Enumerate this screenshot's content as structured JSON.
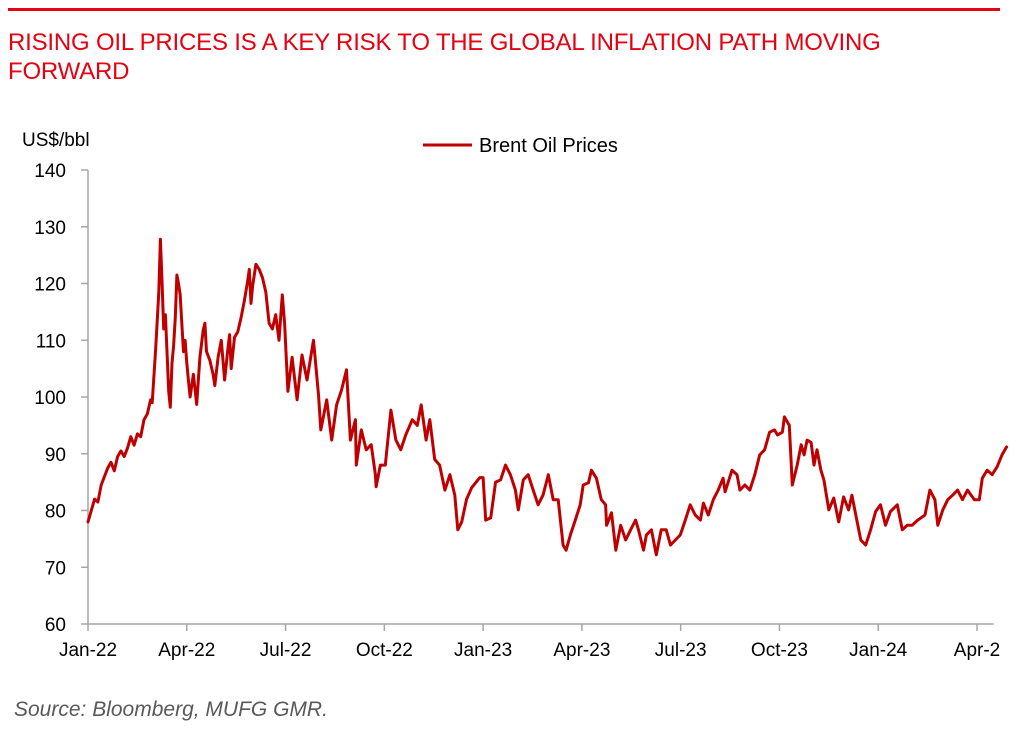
{
  "header": {
    "title": "RISING OIL PRICES IS A KEY RISK TO THE GLOBAL INFLATION PATH MOVING FORWARD"
  },
  "footer": {
    "source": "Source: Bloomberg, MUFG GMR."
  },
  "colors": {
    "accent": "#e60012",
    "series": "#c00000",
    "axis": "#a6a6a6"
  },
  "chart_data": {
    "type": "line",
    "title": "",
    "ylabel": "US$/bbl",
    "xlabel": "",
    "x_unit": "months since 2022-01-01",
    "ylim": [
      60,
      140
    ],
    "yticks": [
      60,
      70,
      80,
      90,
      100,
      110,
      120,
      130,
      140
    ],
    "xlim": [
      0,
      27.6
    ],
    "xticks": [
      {
        "label": "Jan-22",
        "m": 0
      },
      {
        "label": "Apr-22",
        "m": 3
      },
      {
        "label": "Jul-22",
        "m": 6
      },
      {
        "label": "Oct-22",
        "m": 9
      },
      {
        "label": "Jan-23",
        "m": 12
      },
      {
        "label": "Apr-23",
        "m": 15
      },
      {
        "label": "Jul-23",
        "m": 18
      },
      {
        "label": "Oct-23",
        "m": 21
      },
      {
        "label": "Jan-24",
        "m": 24
      },
      {
        "label": "Apr-2",
        "m": 27
      }
    ],
    "grid": false,
    "legend": {
      "position": "top-center",
      "entries": [
        "Brent Oil Prices"
      ]
    },
    "series": [
      {
        "name": "Brent Oil Prices",
        "points": [
          [
            0.0,
            78
          ],
          [
            0.1,
            80
          ],
          [
            0.2,
            82
          ],
          [
            0.3,
            81.5
          ],
          [
            0.4,
            84.5
          ],
          [
            0.5,
            86
          ],
          [
            0.6,
            87.5
          ],
          [
            0.7,
            88.5
          ],
          [
            0.8,
            87
          ],
          [
            0.9,
            89.5
          ],
          [
            1.0,
            90.5
          ],
          [
            1.1,
            89.5
          ],
          [
            1.2,
            91
          ],
          [
            1.3,
            93
          ],
          [
            1.4,
            91.5
          ],
          [
            1.5,
            93.5
          ],
          [
            1.6,
            93
          ],
          [
            1.7,
            96
          ],
          [
            1.8,
            97
          ],
          [
            1.9,
            99.5
          ],
          [
            1.95,
            99
          ],
          [
            2.05,
            108
          ],
          [
            2.1,
            113
          ],
          [
            2.15,
            118.5
          ],
          [
            2.2,
            127.8
          ],
          [
            2.25,
            120
          ],
          [
            2.3,
            112
          ],
          [
            2.35,
            114.5
          ],
          [
            2.4,
            108
          ],
          [
            2.45,
            101
          ],
          [
            2.5,
            98.2
          ],
          [
            2.55,
            106
          ],
          [
            2.6,
            109
          ],
          [
            2.65,
            114
          ],
          [
            2.7,
            121.5
          ],
          [
            2.75,
            120
          ],
          [
            2.8,
            118
          ],
          [
            2.85,
            113
          ],
          [
            2.9,
            108
          ],
          [
            2.95,
            110
          ],
          [
            3.0,
            106
          ],
          [
            3.05,
            103
          ],
          [
            3.1,
            100
          ],
          [
            3.2,
            104
          ],
          [
            3.3,
            98.7
          ],
          [
            3.4,
            107
          ],
          [
            3.5,
            111.8
          ],
          [
            3.55,
            113
          ],
          [
            3.6,
            108
          ],
          [
            3.7,
            106.5
          ],
          [
            3.8,
            104
          ],
          [
            3.85,
            102
          ],
          [
            3.95,
            107
          ],
          [
            4.05,
            110
          ],
          [
            4.15,
            103
          ],
          [
            4.25,
            108.5
          ],
          [
            4.3,
            111
          ],
          [
            4.35,
            105
          ],
          [
            4.45,
            110.5
          ],
          [
            4.55,
            111.5
          ],
          [
            4.65,
            114
          ],
          [
            4.75,
            117
          ],
          [
            4.85,
            120.5
          ],
          [
            4.9,
            122.5
          ],
          [
            4.95,
            116.5
          ],
          [
            5.0,
            119.5
          ],
          [
            5.1,
            123.4
          ],
          [
            5.2,
            122.5
          ],
          [
            5.3,
            121
          ],
          [
            5.4,
            118.5
          ],
          [
            5.5,
            113
          ],
          [
            5.6,
            112
          ],
          [
            5.7,
            114.5
          ],
          [
            5.8,
            110
          ],
          [
            5.9,
            118
          ],
          [
            5.97,
            113
          ],
          [
            6.07,
            101
          ],
          [
            6.2,
            107
          ],
          [
            6.35,
            99.5
          ],
          [
            6.5,
            107.4
          ],
          [
            6.65,
            103
          ],
          [
            6.85,
            110
          ],
          [
            7.0,
            100.4
          ],
          [
            7.07,
            94.2
          ],
          [
            7.25,
            99.5
          ],
          [
            7.4,
            92.4
          ],
          [
            7.55,
            98.6
          ],
          [
            7.7,
            101.2
          ],
          [
            7.85,
            104.8
          ],
          [
            7.97,
            92.4
          ],
          [
            8.12,
            96
          ],
          [
            8.15,
            88
          ],
          [
            8.3,
            94.2
          ],
          [
            8.45,
            90.7
          ],
          [
            8.6,
            91.6
          ],
          [
            8.73,
            86.3
          ],
          [
            8.75,
            84.2
          ],
          [
            8.88,
            88
          ],
          [
            9.03,
            88
          ],
          [
            9.2,
            97.7
          ],
          [
            9.35,
            92.4
          ],
          [
            9.5,
            90.7
          ],
          [
            9.65,
            93.3
          ],
          [
            9.85,
            96
          ],
          [
            10.0,
            95
          ],
          [
            10.12,
            98.6
          ],
          [
            10.27,
            92.4
          ],
          [
            10.38,
            96
          ],
          [
            10.53,
            89
          ],
          [
            10.68,
            88
          ],
          [
            10.84,
            83.6
          ],
          [
            10.99,
            86.3
          ],
          [
            11.14,
            82.7
          ],
          [
            11.23,
            76.6
          ],
          [
            11.35,
            78
          ],
          [
            11.5,
            82
          ],
          [
            11.65,
            84
          ],
          [
            11.9,
            85.8
          ],
          [
            12.0,
            85.8
          ],
          [
            12.08,
            78.3
          ],
          [
            12.23,
            78.7
          ],
          [
            12.38,
            85
          ],
          [
            12.53,
            85.4
          ],
          [
            12.68,
            88
          ],
          [
            12.83,
            86.3
          ],
          [
            12.98,
            83.6
          ],
          [
            13.07,
            80.1
          ],
          [
            13.22,
            85.4
          ],
          [
            13.37,
            86.3
          ],
          [
            13.52,
            83.6
          ],
          [
            13.67,
            81
          ],
          [
            13.82,
            82.7
          ],
          [
            13.98,
            86.3
          ],
          [
            14.13,
            81.9
          ],
          [
            14.28,
            81.9
          ],
          [
            14.43,
            73.9
          ],
          [
            14.52,
            73
          ],
          [
            14.65,
            75.7
          ],
          [
            14.8,
            78.3
          ],
          [
            14.95,
            81
          ],
          [
            15.04,
            84.5
          ],
          [
            15.2,
            84.9
          ],
          [
            15.29,
            87.1
          ],
          [
            15.44,
            85.7
          ],
          [
            15.59,
            81.9
          ],
          [
            15.72,
            81
          ],
          [
            15.75,
            77.4
          ],
          [
            15.9,
            79.6
          ],
          [
            16.03,
            73
          ],
          [
            16.18,
            77.4
          ],
          [
            16.33,
            74.8
          ],
          [
            16.48,
            76.6
          ],
          [
            16.63,
            78.3
          ],
          [
            16.72,
            76.6
          ],
          [
            16.87,
            73
          ],
          [
            16.96,
            75.7
          ],
          [
            17.11,
            76.6
          ],
          [
            17.26,
            72.2
          ],
          [
            17.41,
            76.6
          ],
          [
            17.56,
            76.6
          ],
          [
            17.69,
            73.9
          ],
          [
            17.84,
            74.8
          ],
          [
            17.99,
            75.7
          ],
          [
            18.14,
            78.3
          ],
          [
            18.29,
            81
          ],
          [
            18.44,
            79.2
          ],
          [
            18.6,
            78.3
          ],
          [
            18.69,
            81.3
          ],
          [
            18.84,
            79.2
          ],
          [
            18.99,
            81.9
          ],
          [
            19.14,
            83.6
          ],
          [
            19.29,
            85.7
          ],
          [
            19.35,
            83.3
          ],
          [
            19.56,
            87.1
          ],
          [
            19.71,
            86.3
          ],
          [
            19.8,
            83.6
          ],
          [
            19.95,
            84.5
          ],
          [
            20.1,
            83.6
          ],
          [
            20.25,
            86.3
          ],
          [
            20.4,
            89.8
          ],
          [
            20.55,
            90.7
          ],
          [
            20.7,
            93.8
          ],
          [
            20.85,
            94.2
          ],
          [
            20.94,
            93.3
          ],
          [
            21.09,
            93.8
          ],
          [
            21.15,
            96.5
          ],
          [
            21.3,
            95
          ],
          [
            21.39,
            84.5
          ],
          [
            21.54,
            88
          ],
          [
            21.66,
            91.6
          ],
          [
            21.75,
            89.8
          ],
          [
            21.84,
            92.4
          ],
          [
            21.96,
            92
          ],
          [
            22.05,
            88
          ],
          [
            22.14,
            90.7
          ],
          [
            22.26,
            87.1
          ],
          [
            22.35,
            85.4
          ],
          [
            22.5,
            80.1
          ],
          [
            22.65,
            82.2
          ],
          [
            22.8,
            78
          ],
          [
            22.95,
            82.4
          ],
          [
            23.1,
            80.1
          ],
          [
            23.2,
            82.7
          ],
          [
            23.32,
            79.2
          ],
          [
            23.47,
            74.8
          ],
          [
            23.62,
            73.9
          ],
          [
            23.77,
            76.6
          ],
          [
            23.92,
            79.8
          ],
          [
            24.07,
            81
          ],
          [
            24.22,
            77.4
          ],
          [
            24.37,
            79.8
          ],
          [
            24.58,
            81
          ],
          [
            24.73,
            76.6
          ],
          [
            24.88,
            77.4
          ],
          [
            25.03,
            77.4
          ],
          [
            25.2,
            78.3
          ],
          [
            25.42,
            79.2
          ],
          [
            25.57,
            83.6
          ],
          [
            25.72,
            81.9
          ],
          [
            25.81,
            77.4
          ],
          [
            25.96,
            80.1
          ],
          [
            26.11,
            81.9
          ],
          [
            26.26,
            82.7
          ],
          [
            26.41,
            83.6
          ],
          [
            26.56,
            81.9
          ],
          [
            26.71,
            83.6
          ],
          [
            26.92,
            81.9
          ],
          [
            27.07,
            81.9
          ],
          [
            27.16,
            85.7
          ],
          [
            27.31,
            87.1
          ],
          [
            27.46,
            86.3
          ],
          [
            27.61,
            87.7
          ],
          [
            27.76,
            89.8
          ],
          [
            27.9,
            91.2
          ]
        ]
      }
    ]
  }
}
